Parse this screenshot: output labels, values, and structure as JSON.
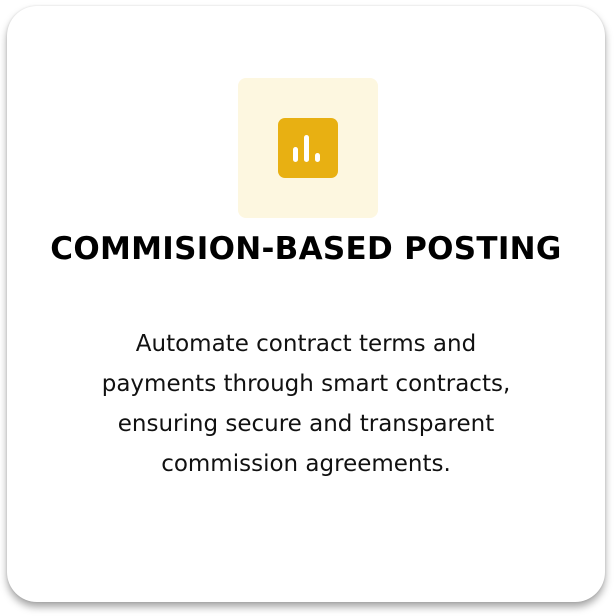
{
  "card": {
    "title": "COMMISION-BASED POSTING",
    "description": "Automate contract terms and payments through smart contracts, ensuring secure and transparent commission agreements.",
    "icon": "bar-chart-icon",
    "accent_color": "#e8b012",
    "icon_background": "#fdf7e0"
  }
}
